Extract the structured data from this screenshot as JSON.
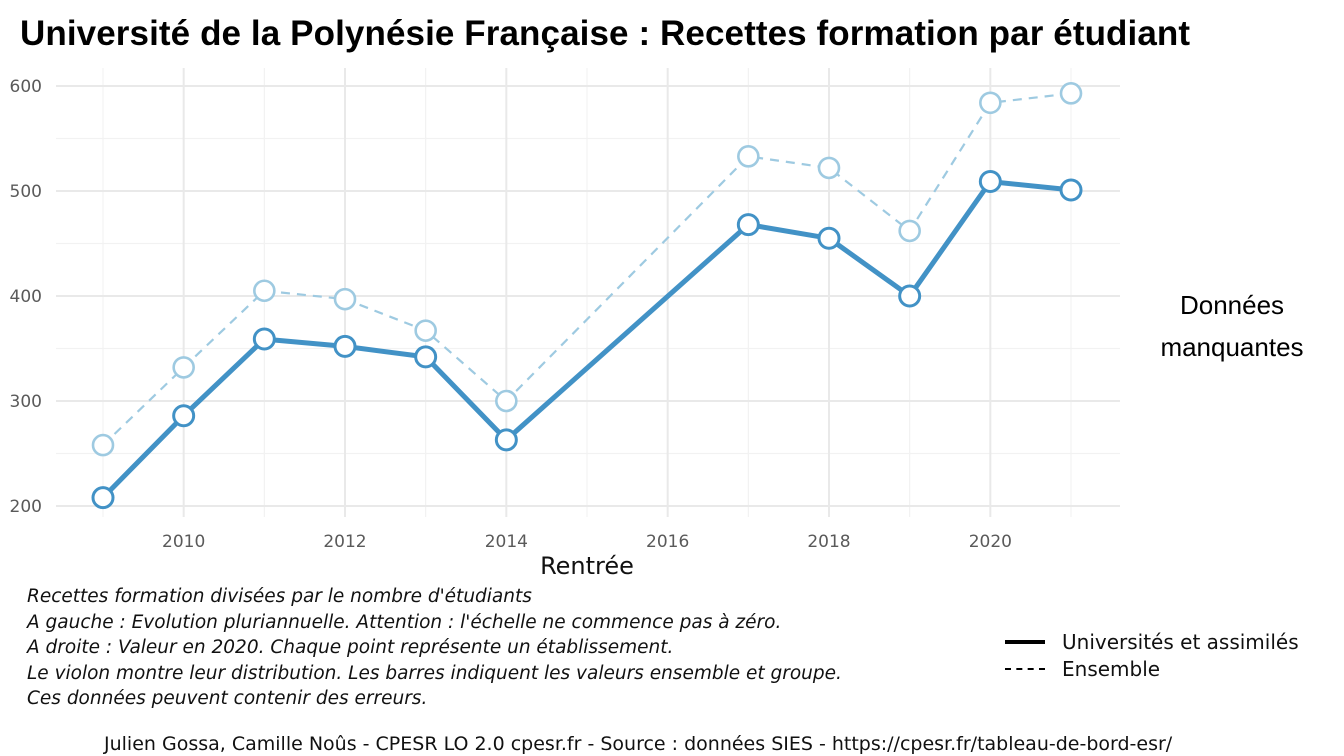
{
  "chart_data": {
    "type": "line",
    "title": "Université de la Polynésie Française  :  Recettes formation par étudiant",
    "xlabel": "Rentrée",
    "ylabel": "",
    "xlim": [
      2008.4,
      2021.6
    ],
    "ylim": [
      190,
      610
    ],
    "x_ticks": [
      2010,
      2012,
      2014,
      2016,
      2018,
      2020
    ],
    "y_ticks": [
      200,
      300,
      400,
      500,
      600
    ],
    "grid": true,
    "legend_position": "bottom-right",
    "series": [
      {
        "name": "Universités et assimilés",
        "style": "solid",
        "color": "#4292c6",
        "x": [
          2009,
          2010,
          2011,
          2012,
          2013,
          2014,
          2017,
          2018,
          2019,
          2020,
          2021
        ],
        "y": [
          208,
          286,
          359,
          352,
          342,
          263,
          468,
          455,
          400,
          509,
          501
        ]
      },
      {
        "name": "Ensemble",
        "style": "dashed",
        "color": "#9ecae1",
        "x": [
          2009,
          2010,
          2011,
          2012,
          2013,
          2014,
          2017,
          2018,
          2019,
          2020,
          2021
        ],
        "y": [
          258,
          332,
          405,
          397,
          367,
          300,
          533,
          522,
          462,
          584,
          593
        ]
      }
    ]
  },
  "side_panel": {
    "line1": "Données",
    "line2": "manquantes"
  },
  "notes": [
    "Recettes formation divisées par le nombre d'étudiants",
    "A gauche : Evolution pluriannuelle. Attention : l'échelle ne commence pas à zéro.",
    "A droite : Valeur en 2020. Chaque point représente un établissement.",
    "Le violon montre leur distribution. Les barres indiquent les valeurs ensemble et groupe.",
    "Ces données peuvent contenir des erreurs."
  ],
  "legend": {
    "solid_label": "Universités et assimilés",
    "dashed_label": "Ensemble"
  },
  "caption": "Julien Gossa, Camille Noûs - CPESR LO 2.0 cpesr.fr - Source : données SIES - https://cpesr.fr/tableau-de-bord-esr/"
}
